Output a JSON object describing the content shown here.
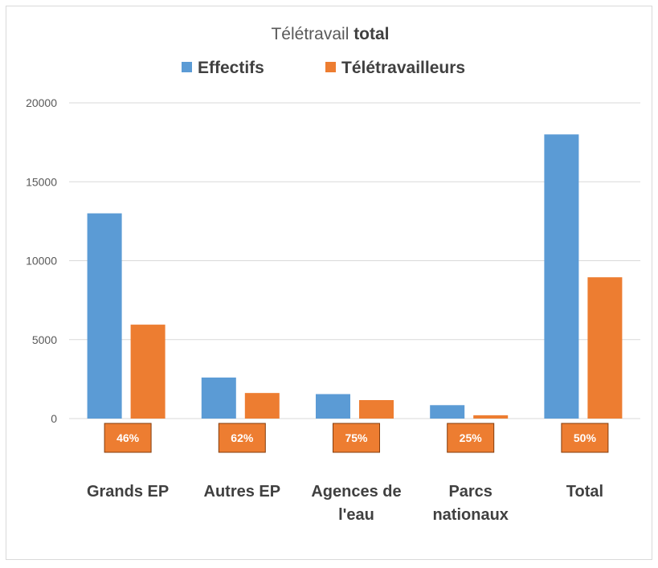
{
  "chart_data": {
    "type": "bar",
    "title_normal": "Télétravail ",
    "title_bold": "total",
    "categories": [
      [
        "Grands EP"
      ],
      [
        "Autres EP"
      ],
      [
        "Agences de",
        "l'eau"
      ],
      [
        "Parcs",
        "nationaux"
      ],
      [
        "Total"
      ]
    ],
    "series": [
      {
        "name": "Effectifs",
        "color": "#5b9bd5",
        "values": [
          13000,
          2600,
          1550,
          850,
          18000
        ]
      },
      {
        "name": "Télétravailleurs",
        "color": "#ed7d31",
        "values": [
          5950,
          1620,
          1170,
          210,
          8950
        ]
      }
    ],
    "percent_labels": [
      "46%",
      "62%",
      "75%",
      "25%",
      "50%"
    ],
    "percent_label_color": "#ed7d31",
    "yticks": [
      0,
      5000,
      10000,
      15000,
      20000
    ],
    "ylim": [
      0,
      20000
    ],
    "grid": true,
    "legend_position": "top-center"
  }
}
